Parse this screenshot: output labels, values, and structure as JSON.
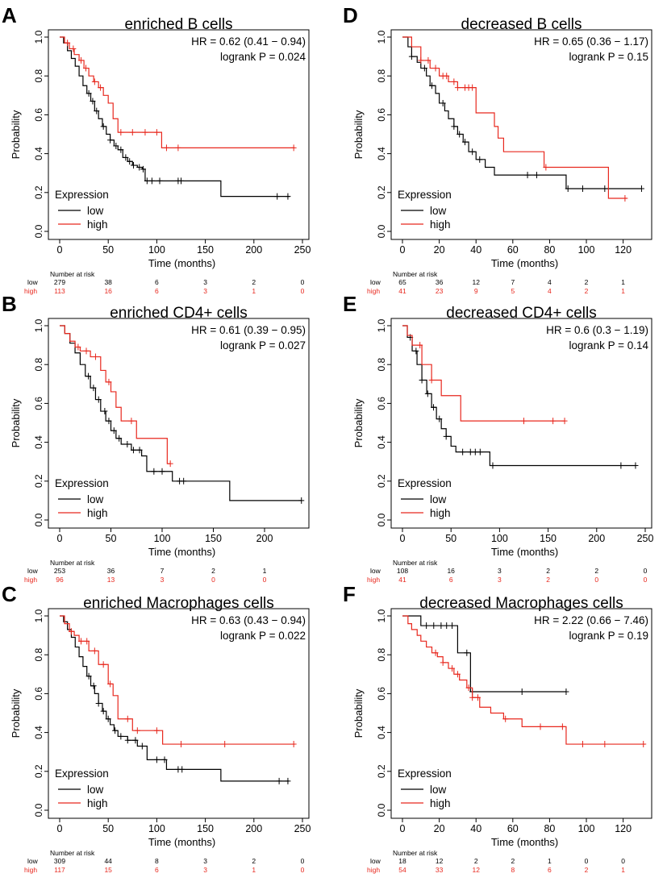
{
  "figure": {
    "colors": {
      "low": "#000000",
      "high": "#e8281e",
      "axis": "#000000"
    },
    "panel_letters": [
      "A",
      "B",
      "C",
      "D",
      "E",
      "F"
    ]
  },
  "chart_data": [
    {
      "id": "A",
      "type": "line",
      "title": "enriched  B cells",
      "hr_text": "HR = 0.62 (0.41 − 0.94)",
      "p_text": "logrank P = 0.024",
      "xlabel": "Time (months)",
      "ylabel": "Probability",
      "xlim": [
        0,
        250
      ],
      "ylim": [
        0,
        1
      ],
      "xticks": [
        "0",
        "50",
        "100",
        "150",
        "200",
        "250"
      ],
      "yticks": [
        "0.0",
        "0.2",
        "0.4",
        "0.6",
        "0.8",
        "1.0"
      ],
      "legend": {
        "title": "Expression",
        "low": "low",
        "high": "high",
        "position": "bottom-left"
      },
      "risk": {
        "header": "Number at risk",
        "low_label": "low",
        "high_label": "high",
        "x": [
          0,
          50,
          100,
          150,
          200,
          250
        ],
        "low": [
          "279",
          "38",
          "6",
          "3",
          "2",
          "0"
        ],
        "high": [
          "113",
          "16",
          "6",
          "3",
          "1",
          "0"
        ]
      },
      "series": [
        {
          "name": "low",
          "color": "#000000",
          "x": [
            0,
            4,
            8,
            12,
            16,
            20,
            24,
            28,
            32,
            36,
            40,
            44,
            48,
            52,
            56,
            60,
            65,
            70,
            75,
            80,
            85,
            88,
            95,
            100,
            110,
            130,
            150,
            166,
            180,
            200,
            220,
            237
          ],
          "y": [
            1.0,
            0.97,
            0.93,
            0.89,
            0.85,
            0.8,
            0.75,
            0.71,
            0.67,
            0.62,
            0.58,
            0.54,
            0.5,
            0.47,
            0.44,
            0.42,
            0.38,
            0.36,
            0.34,
            0.33,
            0.32,
            0.26,
            0.26,
            0.26,
            0.26,
            0.26,
            0.26,
            0.18,
            0.18,
            0.18,
            0.18,
            0.18
          ],
          "censors": [
            30,
            34,
            38,
            45,
            52,
            58,
            63,
            68,
            72,
            76,
            82,
            86,
            90,
            95,
            103,
            122,
            125,
            224,
            235
          ]
        },
        {
          "name": "high",
          "color": "#e8281e",
          "x": [
            0,
            5,
            10,
            15,
            20,
            25,
            30,
            35,
            40,
            45,
            50,
            55,
            60,
            70,
            90,
            100,
            105,
            120,
            150,
            200,
            242
          ],
          "y": [
            1.0,
            0.97,
            0.94,
            0.91,
            0.88,
            0.84,
            0.8,
            0.77,
            0.74,
            0.7,
            0.66,
            0.58,
            0.51,
            0.51,
            0.51,
            0.51,
            0.43,
            0.43,
            0.43,
            0.43,
            0.43
          ],
          "censors": [
            8,
            14,
            22,
            27,
            36,
            42,
            63,
            75,
            88,
            100,
            110,
            122,
            241
          ]
        }
      ]
    },
    {
      "id": "B",
      "type": "line",
      "title": "enriched  CD4+ cells",
      "hr_text": "HR = 0.61 (0.39 − 0.95)",
      "p_text": "logrank P = 0.027",
      "xlabel": "Time (months)",
      "ylabel": "Probability",
      "xlim": [
        0,
        237
      ],
      "ylim": [
        0,
        1
      ],
      "xticks": [
        "0",
        "50",
        "100",
        "150",
        "200"
      ],
      "yticks": [
        "0.0",
        "0.2",
        "0.4",
        "0.6",
        "0.8",
        "1.0"
      ],
      "legend": {
        "title": "Expression",
        "low": "low",
        "high": "high",
        "position": "bottom-left"
      },
      "risk": {
        "header": "Number at risk",
        "low_label": "low",
        "high_label": "high",
        "x": [
          0,
          50,
          100,
          150,
          200
        ],
        "low": [
          "253",
          "36",
          "7",
          "2",
          "1"
        ],
        "high": [
          "96",
          "13",
          "3",
          "0",
          "0"
        ]
      },
      "series": [
        {
          "name": "low",
          "color": "#000000",
          "x": [
            0,
            5,
            10,
            15,
            20,
            25,
            30,
            35,
            40,
            45,
            50,
            55,
            60,
            70,
            80,
            85,
            100,
            110,
            130,
            150,
            166,
            200,
            236
          ],
          "y": [
            1.0,
            0.96,
            0.91,
            0.86,
            0.8,
            0.74,
            0.68,
            0.62,
            0.56,
            0.51,
            0.46,
            0.42,
            0.39,
            0.36,
            0.33,
            0.25,
            0.25,
            0.2,
            0.2,
            0.2,
            0.1,
            0.1,
            0.1
          ],
          "censors": [
            28,
            33,
            38,
            44,
            48,
            53,
            58,
            66,
            72,
            78,
            92,
            100,
            117,
            121,
            236
          ]
        },
        {
          "name": "high",
          "color": "#e8281e",
          "x": [
            0,
            5,
            10,
            15,
            20,
            30,
            40,
            45,
            50,
            55,
            60,
            75,
            90,
            105,
            108
          ],
          "y": [
            1.0,
            0.96,
            0.92,
            0.89,
            0.87,
            0.84,
            0.77,
            0.71,
            0.66,
            0.58,
            0.51,
            0.42,
            0.42,
            0.29,
            0.29
          ],
          "censors": [
            18,
            26,
            35,
            48,
            70,
            108
          ]
        }
      ]
    },
    {
      "id": "C",
      "type": "line",
      "title": "enriched  Macrophages cells",
      "hr_text": "HR = 0.63 (0.43 − 0.94)",
      "p_text": "logrank P = 0.022",
      "xlabel": "Time (months)",
      "ylabel": "Probability",
      "xlim": [
        0,
        250
      ],
      "ylim": [
        0,
        1
      ],
      "xticks": [
        "0",
        "50",
        "100",
        "150",
        "200",
        "250"
      ],
      "yticks": [
        "0.0",
        "0.2",
        "0.4",
        "0.6",
        "0.8",
        "1.0"
      ],
      "legend": {
        "title": "Expression",
        "low": "low",
        "high": "high",
        "position": "bottom-left"
      },
      "risk": {
        "header": "Number at risk",
        "low_label": "low",
        "high_label": "high",
        "x": [
          0,
          50,
          100,
          150,
          200,
          250
        ],
        "low": [
          "309",
          "44",
          "8",
          "3",
          "2",
          "0"
        ],
        "high": [
          "117",
          "15",
          "6",
          "3",
          "1",
          "0"
        ]
      },
      "series": [
        {
          "name": "low",
          "color": "#000000",
          "x": [
            0,
            4,
            8,
            12,
            16,
            20,
            24,
            28,
            32,
            36,
            40,
            44,
            48,
            52,
            56,
            60,
            70,
            80,
            90,
            100,
            110,
            130,
            150,
            166,
            200,
            236
          ],
          "y": [
            1.0,
            0.97,
            0.93,
            0.89,
            0.84,
            0.79,
            0.74,
            0.69,
            0.64,
            0.6,
            0.55,
            0.51,
            0.47,
            0.44,
            0.41,
            0.38,
            0.36,
            0.33,
            0.26,
            0.26,
            0.21,
            0.21,
            0.21,
            0.15,
            0.15,
            0.15
          ],
          "censors": [
            30,
            35,
            40,
            45,
            50,
            57,
            63,
            70,
            78,
            85,
            100,
            108,
            122,
            126,
            226,
            235
          ]
        },
        {
          "name": "high",
          "color": "#e8281e",
          "x": [
            0,
            5,
            10,
            15,
            20,
            30,
            40,
            50,
            55,
            60,
            65,
            75,
            85,
            100,
            106,
            150,
            200,
            242
          ],
          "y": [
            1.0,
            0.96,
            0.92,
            0.9,
            0.87,
            0.82,
            0.75,
            0.65,
            0.59,
            0.47,
            0.47,
            0.41,
            0.41,
            0.41,
            0.34,
            0.34,
            0.34,
            0.34
          ],
          "censors": [
            12,
            22,
            28,
            36,
            45,
            52,
            70,
            80,
            100,
            125,
            170,
            241
          ]
        }
      ]
    },
    {
      "id": "D",
      "type": "line",
      "title": "decreased  B cells",
      "hr_text": "HR = 0.65 (0.36 − 1.17)",
      "p_text": "logrank P = 0.15",
      "xlabel": "Time (months)",
      "ylabel": "Probability",
      "xlim": [
        0,
        132
      ],
      "ylim": [
        0,
        1
      ],
      "xticks": [
        "0",
        "20",
        "40",
        "60",
        "80",
        "100",
        "120"
      ],
      "yticks": [
        "0.0",
        "0.2",
        "0.4",
        "0.6",
        "0.8",
        "1.0"
      ],
      "legend": {
        "title": "Expression",
        "low": "low",
        "high": "high",
        "position": "bottom-left"
      },
      "risk": {
        "header": "Number at risk",
        "low_label": "low",
        "high_label": "high",
        "x": [
          0,
          20,
          40,
          60,
          80,
          100,
          120
        ],
        "low": [
          "65",
          "36",
          "12",
          "7",
          "4",
          "2",
          "1"
        ],
        "high": [
          "41",
          "23",
          "9",
          "5",
          "4",
          "2",
          "1"
        ]
      },
      "series": [
        {
          "name": "low",
          "color": "#000000",
          "x": [
            0,
            3,
            5,
            8,
            10,
            13,
            15,
            18,
            20,
            23,
            25,
            28,
            30,
            33,
            36,
            40,
            45,
            50,
            60,
            70,
            80,
            89,
            100,
            130
          ],
          "y": [
            1.0,
            0.95,
            0.9,
            0.87,
            0.84,
            0.8,
            0.75,
            0.71,
            0.66,
            0.62,
            0.58,
            0.54,
            0.5,
            0.46,
            0.41,
            0.37,
            0.33,
            0.29,
            0.29,
            0.29,
            0.29,
            0.22,
            0.22,
            0.22
          ],
          "censors": [
            5,
            12,
            16,
            22,
            28,
            31,
            34,
            38,
            42,
            68,
            73,
            90,
            98,
            110,
            130
          ]
        },
        {
          "name": "high",
          "color": "#e8281e",
          "x": [
            0,
            5,
            10,
            15,
            20,
            25,
            30,
            40,
            50,
            52,
            55,
            65,
            77,
            90,
            100,
            112,
            122
          ],
          "y": [
            1.0,
            0.95,
            0.88,
            0.84,
            0.8,
            0.77,
            0.74,
            0.61,
            0.54,
            0.48,
            0.41,
            0.41,
            0.33,
            0.33,
            0.33,
            0.17,
            0.17
          ],
          "censors": [
            10,
            14,
            18,
            22,
            24,
            28,
            30,
            34,
            36,
            38,
            78,
            121
          ]
        }
      ]
    },
    {
      "id": "E",
      "type": "line",
      "title": "decreased CD4+ cells",
      "hr_text": "HR = 0.6 (0.3 − 1.19)",
      "p_text": "logrank P = 0.14",
      "xlabel": "Time (months)",
      "ylabel": "Probability",
      "xlim": [
        0,
        250
      ],
      "ylim": [
        0,
        1
      ],
      "xticks": [
        "0",
        "50",
        "100",
        "150",
        "200",
        "250"
      ],
      "yticks": [
        "0.0",
        "0.2",
        "0.4",
        "0.6",
        "0.8",
        "1.0"
      ],
      "legend": {
        "title": "Expression",
        "low": "low",
        "high": "high",
        "position": "bottom-left"
      },
      "risk": {
        "header": "Number at risk",
        "low_label": "low",
        "high_label": "high",
        "x": [
          0,
          50,
          100,
          150,
          200,
          250
        ],
        "low": [
          "108",
          "16",
          "3",
          "2",
          "2",
          "0"
        ],
        "high": [
          "41",
          "6",
          "3",
          "2",
          "0",
          "0"
        ]
      },
      "series": [
        {
          "name": "low",
          "color": "#000000",
          "x": [
            0,
            5,
            10,
            15,
            20,
            25,
            30,
            35,
            40,
            45,
            50,
            55,
            60,
            70,
            80,
            90,
            100,
            150,
            200,
            240
          ],
          "y": [
            1.0,
            0.94,
            0.87,
            0.8,
            0.72,
            0.65,
            0.58,
            0.52,
            0.47,
            0.43,
            0.38,
            0.35,
            0.35,
            0.35,
            0.35,
            0.28,
            0.28,
            0.28,
            0.28,
            0.28
          ],
          "censors": [
            8,
            14,
            20,
            26,
            32,
            38,
            45,
            62,
            70,
            75,
            80,
            93,
            225,
            240
          ]
        },
        {
          "name": "high",
          "color": "#e8281e",
          "x": [
            0,
            5,
            10,
            20,
            30,
            40,
            50,
            60,
            80,
            100,
            150,
            167
          ],
          "y": [
            1.0,
            0.95,
            0.9,
            0.8,
            0.72,
            0.64,
            0.64,
            0.51,
            0.51,
            0.51,
            0.51,
            0.51
          ],
          "censors": [
            18,
            30,
            125,
            155,
            167
          ]
        }
      ]
    },
    {
      "id": "F",
      "type": "line",
      "title": "decreased  Macrophages cells",
      "hr_text": "HR = 2.22 (0.66 − 7.46)",
      "p_text": "logrank P = 0.19",
      "xlabel": "Time (months)",
      "ylabel": "Probability",
      "xlim": [
        0,
        132
      ],
      "ylim": [
        0,
        1
      ],
      "xticks": [
        "0",
        "20",
        "40",
        "60",
        "80",
        "100",
        "120"
      ],
      "yticks": [
        "0.0",
        "0.2",
        "0.4",
        "0.6",
        "0.8",
        "1.0"
      ],
      "legend": {
        "title": "Expression",
        "low": "low",
        "high": "high",
        "position": "bottom-left"
      },
      "risk": {
        "header": "Number at risk",
        "low_label": "low",
        "high_label": "high",
        "x": [
          0,
          20,
          40,
          60,
          80,
          100,
          120
        ],
        "low": [
          "18",
          "12",
          "2",
          "2",
          "1",
          "0",
          "0"
        ],
        "high": [
          "54",
          "33",
          "12",
          "8",
          "6",
          "2",
          "1"
        ]
      },
      "series": [
        {
          "name": "low",
          "color": "#000000",
          "x": [
            0,
            10,
            20,
            30,
            35,
            37,
            40,
            60,
            89
          ],
          "y": [
            1.0,
            0.95,
            0.95,
            0.81,
            0.81,
            0.61,
            0.61,
            0.61,
            0.61
          ],
          "censors": [
            13,
            17,
            21,
            24,
            27,
            35,
            38,
            65,
            89
          ]
        },
        {
          "name": "high",
          "color": "#e8281e",
          "x": [
            0,
            3,
            5,
            8,
            10,
            13,
            16,
            19,
            22,
            25,
            28,
            31,
            35,
            38,
            42,
            48,
            55,
            65,
            75,
            89,
            100,
            132
          ],
          "y": [
            1.0,
            0.96,
            0.93,
            0.9,
            0.87,
            0.84,
            0.81,
            0.79,
            0.76,
            0.73,
            0.7,
            0.67,
            0.63,
            0.58,
            0.53,
            0.5,
            0.47,
            0.43,
            0.43,
            0.34,
            0.34,
            0.34
          ],
          "censors": [
            18,
            22,
            27,
            30,
            36,
            38,
            41,
            56,
            75,
            87,
            98,
            110,
            131
          ]
        }
      ]
    }
  ]
}
